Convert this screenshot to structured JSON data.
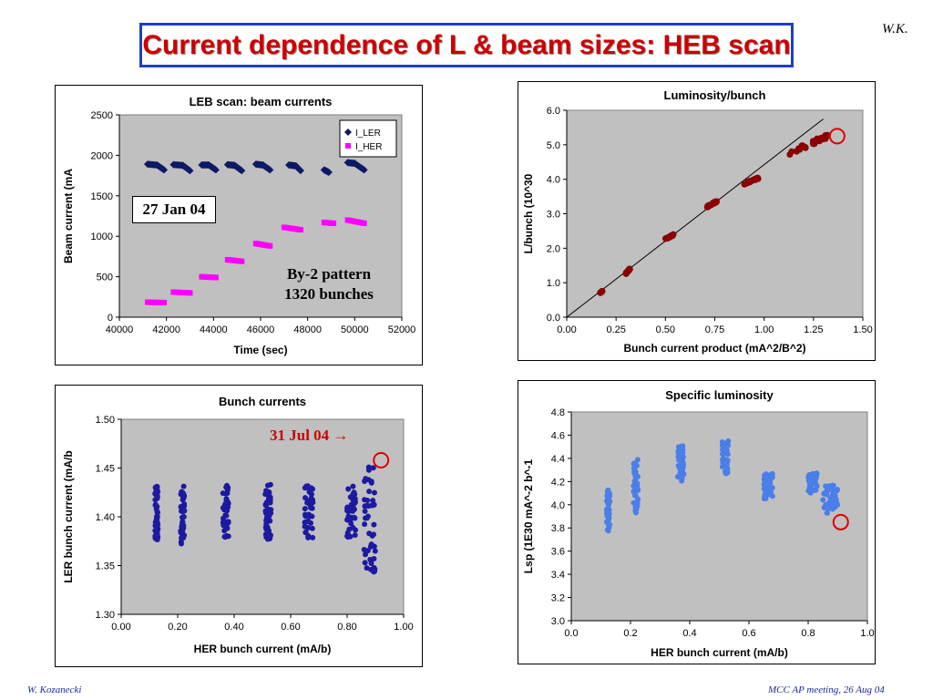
{
  "slide": {
    "title": "Current dependence of L & beam sizes: HEB scan",
    "author_tag": "W.K.",
    "footer_left": "W. Kozanecki",
    "footer_right": "MCC AP meeting, 26 Aug 04"
  },
  "annotations": {
    "date1": "27 Jan 04",
    "pattern_line1": "By-2 pattern",
    "pattern_line2": "1320 bunches",
    "date2": "31 Jul 04 →"
  },
  "colors": {
    "title": "#cc0000",
    "title_border": "#1f3fbf",
    "plot_bg": "#c0c0c0",
    "ler_series": "#0d1a66",
    "her_series": "#ff00ff",
    "lumi_series": "#8b0000",
    "bunch_series": "#1c1aa0",
    "sp_series": "#4a7ee8",
    "marker_circle": "#dd0000"
  },
  "chart_data": [
    {
      "type": "scatter",
      "title": "LEB scan: beam currents",
      "xlabel": "Time (sec)",
      "ylabel": "Beam current (mA",
      "xlim": [
        40000,
        52000
      ],
      "ylim": [
        0,
        2500
      ],
      "xticks": [
        "40000",
        "42000",
        "44000",
        "46000",
        "48000",
        "50000",
        "52000"
      ],
      "yticks": [
        "0",
        "500",
        "1000",
        "1500",
        "2000",
        "2500"
      ],
      "grid": false,
      "legend": "top-right",
      "series": [
        {
          "name": "I_LER",
          "marker": "diamond",
          "segments": [
            [
              [
                41200,
                1890
              ],
              [
                41600,
                1880
              ],
              [
                41900,
                1820
              ]
            ],
            [
              [
                42300,
                1885
              ],
              [
                42700,
                1875
              ],
              [
                43000,
                1810
              ]
            ],
            [
              [
                43500,
                1880
              ],
              [
                43800,
                1880
              ],
              [
                44100,
                1820
              ]
            ],
            [
              [
                44600,
                1885
              ],
              [
                44900,
                1875
              ],
              [
                45200,
                1810
              ]
            ],
            [
              [
                45800,
                1890
              ],
              [
                46100,
                1880
              ],
              [
                46400,
                1820
              ]
            ],
            [
              [
                47200,
                1880
              ],
              [
                47500,
                1870
              ],
              [
                47700,
                1810
              ]
            ],
            [
              [
                48700,
                1820
              ],
              [
                48900,
                1790
              ]
            ],
            [
              [
                49700,
                1910
              ],
              [
                50000,
                1900
              ],
              [
                50400,
                1820
              ]
            ]
          ]
        },
        {
          "name": "I_HER",
          "marker": "square",
          "segments": [
            [
              [
                41200,
                185
              ],
              [
                41900,
                180
              ]
            ],
            [
              [
                42300,
                310
              ],
              [
                43000,
                300
              ]
            ],
            [
              [
                43500,
                500
              ],
              [
                44100,
                490
              ]
            ],
            [
              [
                44600,
                710
              ],
              [
                45200,
                690
              ]
            ],
            [
              [
                45800,
                910
              ],
              [
                46400,
                880
              ]
            ],
            [
              [
                47000,
                1110
              ],
              [
                47700,
                1080
              ]
            ],
            [
              [
                48700,
                1170
              ],
              [
                49100,
                1160
              ]
            ],
            [
              [
                49700,
                1200
              ],
              [
                50400,
                1160
              ]
            ]
          ]
        }
      ]
    },
    {
      "type": "scatter",
      "title": "Luminosity/bunch",
      "xlabel": "Bunch current product (mA^2/B^2)",
      "ylabel": "L/bunch (10^30",
      "xlim": [
        0.0,
        1.5
      ],
      "ylim": [
        0.0,
        6.0
      ],
      "xticks": [
        "0.00",
        "0.25",
        "0.50",
        "0.75",
        "1.00",
        "1.25",
        "1.50"
      ],
      "yticks": [
        "0.0",
        "1.0",
        "2.0",
        "3.0",
        "4.0",
        "5.0",
        "6.0"
      ],
      "grid": false,
      "reference_line": [
        [
          0.0,
          0.0
        ],
        [
          1.3,
          5.75
        ]
      ],
      "clusters": [
        {
          "x": [
            0.17,
            0.18
          ],
          "y": [
            0.7,
            0.76
          ]
        },
        {
          "x": [
            0.3,
            0.32
          ],
          "y": [
            1.25,
            1.42
          ]
        },
        {
          "x": [
            0.5,
            0.54
          ],
          "y": [
            2.25,
            2.4
          ]
        },
        {
          "x": [
            0.71,
            0.76
          ],
          "y": [
            3.18,
            3.38
          ]
        },
        {
          "x": [
            0.9,
            0.97
          ],
          "y": [
            3.85,
            4.05
          ]
        },
        {
          "x": [
            1.13,
            1.33
          ],
          "y": [
            4.7,
            5.35
          ]
        }
      ],
      "highlight_point": [
        1.37,
        5.25
      ]
    },
    {
      "type": "scatter",
      "title": "Bunch currents",
      "xlabel": "HER bunch current (mA/b)",
      "ylabel": "LER bunch current (mA/b",
      "xlim": [
        0.0,
        1.0
      ],
      "ylim": [
        1.3,
        1.5
      ],
      "xticks": [
        "0.00",
        "0.20",
        "0.40",
        "0.60",
        "0.80",
        "1.00"
      ],
      "yticks": [
        "1.30",
        "1.35",
        "1.40",
        "1.45",
        "1.50"
      ],
      "grid": false,
      "clusters": [
        {
          "x": [
            0.12,
            0.13
          ],
          "y": [
            1.376,
            1.433
          ]
        },
        {
          "x": [
            0.21,
            0.225
          ],
          "y": [
            1.371,
            1.433
          ]
        },
        {
          "x": [
            0.36,
            0.38
          ],
          "y": [
            1.378,
            1.433
          ]
        },
        {
          "x": [
            0.51,
            0.53
          ],
          "y": [
            1.377,
            1.433
          ]
        },
        {
          "x": [
            0.65,
            0.68
          ],
          "y": [
            1.378,
            1.433
          ]
        },
        {
          "x": [
            0.8,
            0.83
          ],
          "y": [
            1.378,
            1.433
          ]
        },
        {
          "x": [
            0.86,
            0.9
          ],
          "y": [
            1.342,
            1.455
          ]
        }
      ],
      "highlight_point": [
        0.92,
        1.458
      ]
    },
    {
      "type": "scatter",
      "title": "Specific luminosity",
      "xlabel": "HER bunch current (mA/b)",
      "ylabel": "Lsp (1E30 mA^-2 b^-1",
      "xlim": [
        0.0,
        1.0
      ],
      "ylim": [
        3.0,
        4.8
      ],
      "xticks": [
        "0.0",
        "0.2",
        "0.4",
        "0.6",
        "0.8",
        "1.0"
      ],
      "yticks": [
        "3.0",
        "3.2",
        "3.4",
        "3.6",
        "3.8",
        "4.0",
        "4.2",
        "4.4",
        "4.6",
        "4.8"
      ],
      "grid": false,
      "clusters": [
        {
          "x": [
            0.12,
            0.13
          ],
          "y": [
            3.77,
            4.13
          ]
        },
        {
          "x": [
            0.21,
            0.225
          ],
          "y": [
            3.93,
            4.4
          ]
        },
        {
          "x": [
            0.36,
            0.38
          ],
          "y": [
            4.2,
            4.51
          ]
        },
        {
          "x": [
            0.51,
            0.53
          ],
          "y": [
            4.27,
            4.55
          ]
        },
        {
          "x": [
            0.65,
            0.68
          ],
          "y": [
            4.05,
            4.27
          ]
        },
        {
          "x": [
            0.8,
            0.83
          ],
          "y": [
            4.1,
            4.28
          ]
        },
        {
          "x": [
            0.85,
            0.9
          ],
          "y": [
            3.92,
            4.17
          ]
        }
      ],
      "highlight_point": [
        0.91,
        3.85
      ]
    }
  ]
}
